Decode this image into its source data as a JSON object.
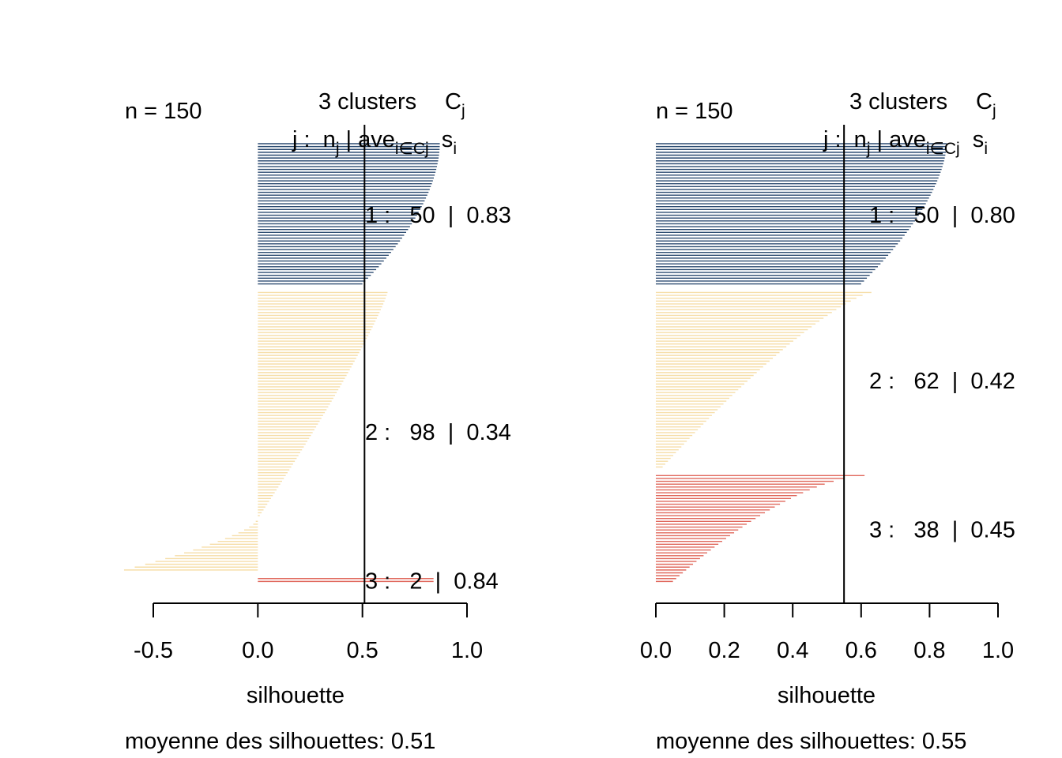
{
  "colors": {
    "cluster1": "#2b4a70",
    "cluster2": "#f6dea8",
    "cluster3": "#e0685c",
    "axis": "#000000"
  },
  "chart_data": [
    {
      "type": "bar",
      "subtype": "silhouette",
      "orientation": "horizontal",
      "n_label": "n = 150",
      "header_clusters": "3  clusters",
      "header_sym": "C",
      "header_sub": "j",
      "xlabel": "silhouette",
      "footer": "moyenne des silhouettes: 0.51",
      "average": 0.51,
      "xlim": [
        -0.5,
        1.0
      ],
      "xticks": [
        -0.5,
        0.0,
        0.5,
        1.0
      ],
      "xtick_labels": [
        "-0.5",
        "0.0",
        "0.5",
        "1.0"
      ],
      "clusters": [
        {
          "j": "1",
          "n": "50",
          "ave": "0.83",
          "s_max": 0.87,
          "s_min": 0.5,
          "shape": 0.55,
          "neg": false
        },
        {
          "j": "2",
          "n": "98",
          "ave": "0.34",
          "s_max": 0.62,
          "s_min": -0.64,
          "shape": 1.0,
          "neg": true
        },
        {
          "j": "3",
          "n": "2",
          "ave": "0.84",
          "s_max": 0.84,
          "s_min": 0.84,
          "shape": 1.0,
          "neg": false
        }
      ]
    },
    {
      "type": "bar",
      "subtype": "silhouette",
      "orientation": "horizontal",
      "n_label": "n = 150",
      "header_clusters": "3  clusters",
      "header_sym": "C",
      "header_sub": "j",
      "xlabel": "silhouette",
      "footer": "moyenne des silhouettes: 0.55",
      "average": 0.55,
      "xlim": [
        0.0,
        1.0
      ],
      "xticks": [
        0.0,
        0.2,
        0.4,
        0.6,
        0.8,
        1.0
      ],
      "xtick_labels": [
        "0.0",
        "0.2",
        "0.4",
        "0.6",
        "0.8",
        "1.0"
      ],
      "clusters": [
        {
          "j": "1",
          "n": "50",
          "ave": "0.80",
          "s_max": 0.85,
          "s_min": 0.6,
          "shape": 0.6,
          "neg": false
        },
        {
          "j": "2",
          "n": "62",
          "ave": "0.42",
          "s_max": 0.63,
          "s_min": 0.02,
          "shape": 1.3,
          "neg": false
        },
        {
          "j": "3",
          "n": "38",
          "ave": "0.45",
          "s_max": 0.61,
          "s_min": 0.05,
          "shape": 1.6,
          "neg": false
        }
      ]
    }
  ]
}
